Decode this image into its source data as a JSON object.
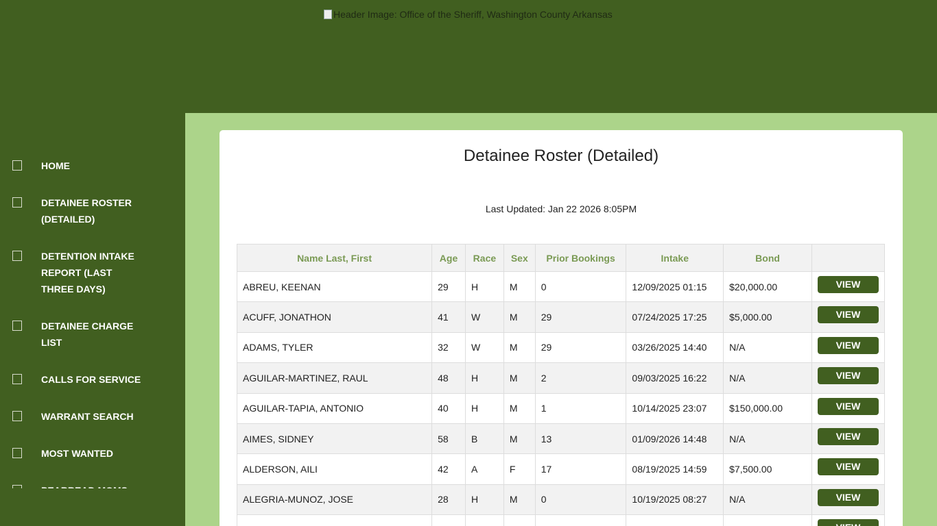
{
  "header": {
    "image_alt": "Header Image: Office of the Sheriff, Washington County Arkansas"
  },
  "sidebar": {
    "items": [
      {
        "label": "HOME"
      },
      {
        "label": "DETAINEE ROSTER (DETAILED)"
      },
      {
        "label": "DETENTION INTAKE REPORT (LAST THREE DAYS)"
      },
      {
        "label": "DETAINEE CHARGE LIST"
      },
      {
        "label": "CALLS FOR SERVICE"
      },
      {
        "label": "WARRANT SEARCH"
      },
      {
        "label": "MOST WANTED"
      },
      {
        "label": "PEARREAD MOMS"
      }
    ]
  },
  "main": {
    "title": "Detainee Roster (Detailed)",
    "last_updated": "Last Updated: Jan 22 2026 8:05PM",
    "columns": [
      "Name Last, First",
      "Age",
      "Race",
      "Sex",
      "Prior Bookings",
      "Intake",
      "Bond",
      ""
    ],
    "view_label": "VIEW",
    "rows": [
      [
        "ABREU, KEENAN",
        "29",
        "H",
        "M",
        "0",
        "12/09/2025 01:15",
        "$20,000.00"
      ],
      [
        "ACUFF, JONATHON",
        "41",
        "W",
        "M",
        "29",
        "07/24/2025 17:25",
        "$5,000.00"
      ],
      [
        "ADAMS, TYLER",
        "32",
        "W",
        "M",
        "29",
        "03/26/2025 14:40",
        "N/A"
      ],
      [
        "AGUILAR-MARTINEZ, RAUL",
        "48",
        "H",
        "M",
        "2",
        "09/03/2025 16:22",
        "N/A"
      ],
      [
        "AGUILAR-TAPIA, ANTONIO",
        "40",
        "H",
        "M",
        "1",
        "10/14/2025 23:07",
        "$150,000.00"
      ],
      [
        "AIMES, SIDNEY",
        "58",
        "B",
        "M",
        "13",
        "01/09/2026 14:48",
        "N/A"
      ],
      [
        "ALDERSON, AILI",
        "42",
        "A",
        "F",
        "17",
        "08/19/2025 14:59",
        "$7,500.00"
      ],
      [
        "ALEGRIA-MUNOZ, JOSE",
        "28",
        "H",
        "M",
        "0",
        "10/19/2025 08:27",
        "N/A"
      ]
    ]
  },
  "colors": {
    "dark_green": "#415f20",
    "light_green": "#acd48a",
    "header_text": "#7a9a54"
  }
}
